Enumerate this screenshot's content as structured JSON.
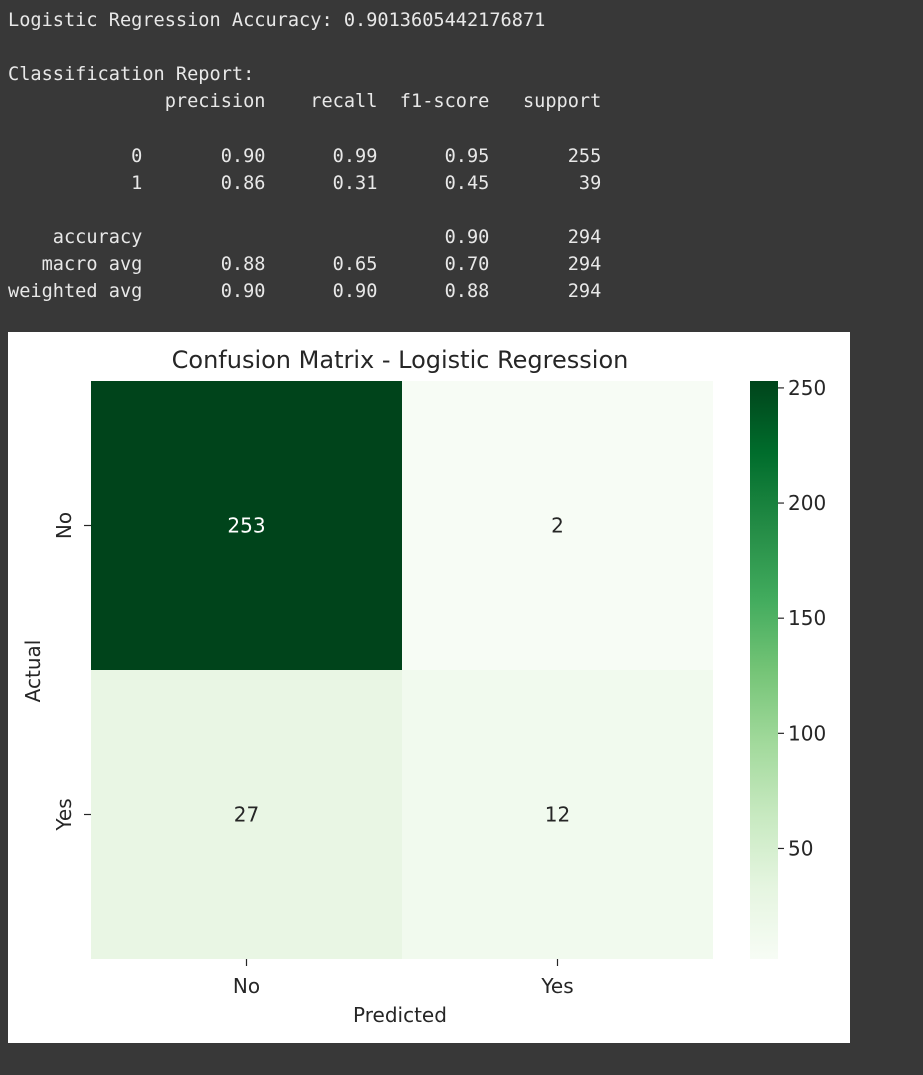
{
  "console": {
    "lines": [
      "Logistic Regression Accuracy: 0.9013605442176871",
      "",
      "Classification Report:",
      "              precision    recall  f1-score   support",
      "",
      "           0       0.90      0.99      0.95       255",
      "           1       0.86      0.31      0.45        39",
      "",
      "    accuracy                           0.90       294",
      "   macro avg       0.88      0.65      0.70       294",
      "weighted avg       0.90      0.90      0.88       294"
    ]
  },
  "chart_data": {
    "type": "heatmap",
    "title": "Confusion Matrix - Logistic Regression",
    "xlabel": "Predicted",
    "ylabel": "Actual",
    "x_categories": [
      "No",
      "Yes"
    ],
    "y_categories": [
      "No",
      "Yes"
    ],
    "values": [
      [
        253,
        2
      ],
      [
        27,
        12
      ]
    ],
    "colormap": "Greens",
    "colorbar": {
      "min": 2,
      "max": 253,
      "ticks": [
        50,
        100,
        150,
        200,
        250
      ],
      "tick_labels": [
        "50",
        "100",
        "150",
        "200",
        "250"
      ]
    },
    "colors": {
      "low": "#f7fcf5",
      "high": "#00441b",
      "text_on_dark": "#ffffff",
      "text_on_light": "#262626"
    }
  }
}
